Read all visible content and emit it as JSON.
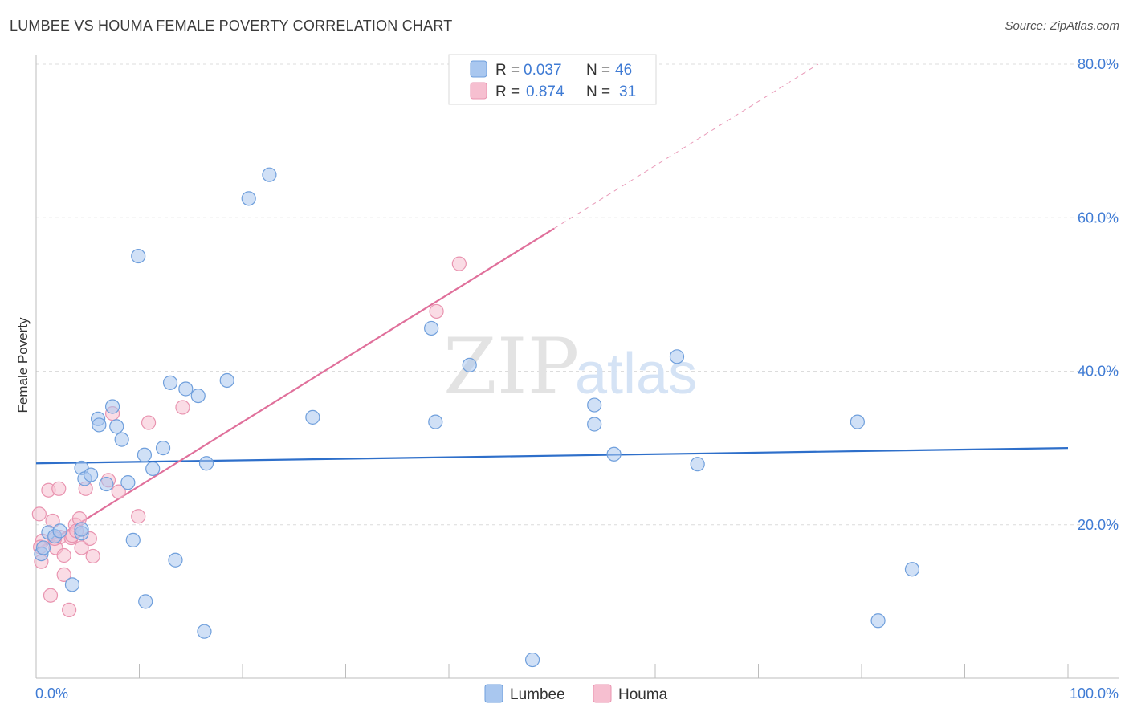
{
  "title": "LUMBEE VS HOUMA FEMALE POVERTY CORRELATION CHART",
  "source": "Source: ZipAtlas.com",
  "colors": {
    "lumbee_fill": "#a9c7ef",
    "lumbee_stroke": "#6f9fdc",
    "lumbee_line": "#2e6fca",
    "houma_fill": "#f6bfd0",
    "houma_stroke": "#e994b0",
    "houma_line": "#e0709b",
    "tick_text": "#3f7bd4"
  },
  "legend_top": [
    {
      "series": "Lumbee",
      "r_label": "R = ",
      "r_value": "0.037",
      "n_label": "N = ",
      "n_value": "46"
    },
    {
      "series": "Houma",
      "r_label": "R = ",
      "r_value": "0.874",
      "n_label": "N = ",
      "n_value": "31"
    }
  ],
  "legend_bottom": [
    "Lumbee",
    "Houma"
  ],
  "watermark": {
    "zip": "ZIP",
    "atlas": "atlas"
  },
  "chart_data": {
    "type": "scatter",
    "title": "LUMBEE VS HOUMA FEMALE POVERTY CORRELATION CHART",
    "xlabel": "",
    "ylabel": "Female Poverty",
    "xlim": [
      0,
      100
    ],
    "ylim": [
      0,
      80
    ],
    "x_tick_labels": [
      "0.0%",
      "100.0%"
    ],
    "y_ticks": [
      20,
      40,
      60,
      80
    ],
    "y_tick_labels": [
      "20.0%",
      "40.0%",
      "60.0%",
      "80.0%"
    ],
    "grid": true,
    "series": [
      {
        "name": "Lumbee",
        "points": [
          [
            0.5,
            16.2
          ],
          [
            0.7,
            17.0
          ],
          [
            1.2,
            19.0
          ],
          [
            1.8,
            18.5
          ],
          [
            2.3,
            19.2
          ],
          [
            3.5,
            12.2
          ],
          [
            4.4,
            18.9
          ],
          [
            4.4,
            19.4
          ],
          [
            4.4,
            27.4
          ],
          [
            4.7,
            26.0
          ],
          [
            5.3,
            26.5
          ],
          [
            6.0,
            33.8
          ],
          [
            6.1,
            33.0
          ],
          [
            6.8,
            25.3
          ],
          [
            7.4,
            35.4
          ],
          [
            7.8,
            32.8
          ],
          [
            8.3,
            31.1
          ],
          [
            8.9,
            25.5
          ],
          [
            9.4,
            18.0
          ],
          [
            9.9,
            55.0
          ],
          [
            10.5,
            29.1
          ],
          [
            10.6,
            10.0
          ],
          [
            11.3,
            27.3
          ],
          [
            12.3,
            30.0
          ],
          [
            13.0,
            38.5
          ],
          [
            13.5,
            15.4
          ],
          [
            14.5,
            37.7
          ],
          [
            15.7,
            36.8
          ],
          [
            16.3,
            6.1
          ],
          [
            16.5,
            28.0
          ],
          [
            18.5,
            38.8
          ],
          [
            20.6,
            62.5
          ],
          [
            22.6,
            65.6
          ],
          [
            26.8,
            34.0
          ],
          [
            38.3,
            45.6
          ],
          [
            38.7,
            33.4
          ],
          [
            42.0,
            40.8
          ],
          [
            48.1,
            2.4
          ],
          [
            54.1,
            35.6
          ],
          [
            54.1,
            33.1
          ],
          [
            56.0,
            29.2
          ],
          [
            62.1,
            41.9
          ],
          [
            64.1,
            27.9
          ],
          [
            79.6,
            33.4
          ],
          [
            81.6,
            7.5
          ],
          [
            84.9,
            14.2
          ]
        ],
        "trendline": {
          "x": [
            0,
            100
          ],
          "y": [
            28.0,
            30.0
          ]
        }
      },
      {
        "name": "Houma",
        "points": [
          [
            0.3,
            21.4
          ],
          [
            0.5,
            15.2
          ],
          [
            0.6,
            17.9
          ],
          [
            1.2,
            24.5
          ],
          [
            1.4,
            10.8
          ],
          [
            1.6,
            20.5
          ],
          [
            1.9,
            17.0
          ],
          [
            2.2,
            24.7
          ],
          [
            2.3,
            18.4
          ],
          [
            2.7,
            16.0
          ],
          [
            2.7,
            13.5
          ],
          [
            3.2,
            8.9
          ],
          [
            3.4,
            18.3
          ],
          [
            3.5,
            18.6
          ],
          [
            3.8,
            20.0
          ],
          [
            3.9,
            19.2
          ],
          [
            4.2,
            20.8
          ],
          [
            4.4,
            17.0
          ],
          [
            4.8,
            24.7
          ],
          [
            5.2,
            18.2
          ],
          [
            5.5,
            15.9
          ],
          [
            7.0,
            25.8
          ],
          [
            7.4,
            34.5
          ],
          [
            8.0,
            24.3
          ],
          [
            9.9,
            21.1
          ],
          [
            10.9,
            33.3
          ],
          [
            14.2,
            35.3
          ],
          [
            38.8,
            47.8
          ],
          [
            41.0,
            54.0
          ],
          [
            0.4,
            17.1
          ],
          [
            1.8,
            18.2
          ]
        ],
        "trendline": {
          "x": [
            0,
            50.2
          ],
          "y": [
            16.7,
            58.6
          ],
          "dashed_to": {
            "x": 75.8,
            "y": 80
          }
        }
      }
    ]
  }
}
